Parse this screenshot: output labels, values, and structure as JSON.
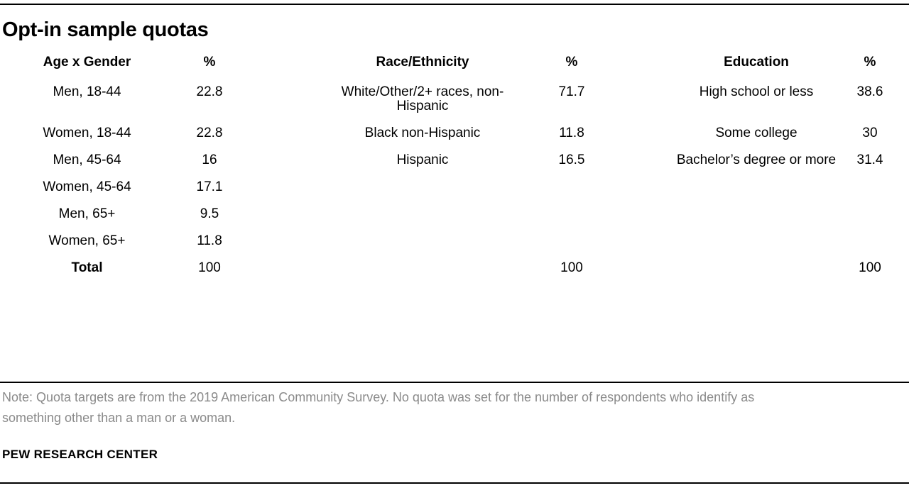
{
  "title": "Opt-in sample quotas",
  "table": {
    "headers": [
      "Age x Gender",
      "%",
      "Race/Ethnicity",
      "%",
      "Education",
      "%"
    ],
    "rows": [
      [
        "Men, 18-44",
        "22.8",
        "White/Other/2+ races, non-Hispanic",
        "71.7",
        "High school or less",
        "38.6"
      ],
      [
        "Women, 18-44",
        "22.8",
        "Black non-Hispanic",
        "11.8",
        "Some college",
        "30"
      ],
      [
        "Men, 45-64",
        "16",
        "Hispanic",
        "16.5",
        "Bachelor’s degree or more",
        "31.4"
      ],
      [
        "Women, 45-64",
        "17.1",
        "",
        "",
        "",
        ""
      ],
      [
        "Men, 65+",
        "9.5",
        "",
        "",
        "",
        ""
      ],
      [
        "Women, 65+",
        "11.8",
        "",
        "",
        "",
        ""
      ],
      [
        "Total",
        "100",
        "",
        "100",
        "",
        "100"
      ]
    ]
  },
  "note": "Note: Quota targets are from the 2019 American Community Survey. No quota was set for the number of respondents who identify as something other than a man or a woman.",
  "footer": "PEW RESEARCH CENTER",
  "colors": {
    "text": "#000000",
    "note_text": "#8a8a8a",
    "rule": "#000000",
    "background": "#ffffff"
  },
  "chart_data": [
    {
      "type": "table",
      "title": "Opt-in sample quotas",
      "columns": [
        "Age x Gender",
        "%"
      ],
      "rows": [
        [
          "Men, 18-44",
          22.8
        ],
        [
          "Women, 18-44",
          22.8
        ],
        [
          "Men, 45-64",
          16
        ],
        [
          "Women, 45-64",
          17.1
        ],
        [
          "Men, 65+",
          9.5
        ],
        [
          "Women, 65+",
          11.8
        ],
        [
          "Total",
          100
        ]
      ]
    },
    {
      "type": "table",
      "columns": [
        "Race/Ethnicity",
        "%"
      ],
      "rows": [
        [
          "White/Other/2+ races, non-Hispanic",
          71.7
        ],
        [
          "Black non-Hispanic",
          11.8
        ],
        [
          "Hispanic",
          16.5
        ],
        [
          "Total",
          100
        ]
      ]
    },
    {
      "type": "table",
      "columns": [
        "Education",
        "%"
      ],
      "rows": [
        [
          "High school or less",
          38.6
        ],
        [
          "Some college",
          30
        ],
        [
          "Bachelor’s degree or more",
          31.4
        ],
        [
          "Total",
          100
        ]
      ]
    }
  ]
}
